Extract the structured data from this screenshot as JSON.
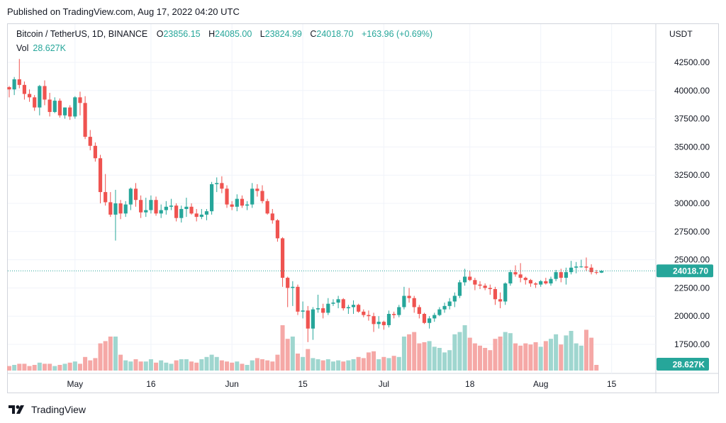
{
  "published": "Published on TradingView.com, Aug 17, 2022 04:20 UTC",
  "legend": {
    "symbol": "Bitcoin / TetherUS, 1D, BINANCE",
    "open_label": "O",
    "open": "23856.15",
    "high_label": "H",
    "high": "24085.00",
    "low_label": "L",
    "low": "23824.99",
    "close_label": "C",
    "close": "24018.70",
    "change": "+163.96 (+0.69%)"
  },
  "volume_legend": {
    "label": "Vol",
    "value": "28.627K"
  },
  "currency": "USDT",
  "footer_logo": "TradingView",
  "colors": {
    "up": "#26a69a",
    "down": "#ef5350",
    "vol_up": "#9fd6cf",
    "vol_down": "#f5a8a6",
    "grid": "#f0f3fa"
  },
  "chart_data": {
    "type": "candlestick",
    "symbol": "BTCUSDT",
    "interval": "1D",
    "start_date": "2022-04-18",
    "end_date": "2022-08-17",
    "ylim": [
      15500,
      43000
    ],
    "y_ticks": [
      "42500.00",
      "40000.00",
      "37500.00",
      "35000.00",
      "32500.00",
      "30000.00",
      "27500.00",
      "25000.00",
      "22500.00",
      "20000.00",
      "17500.00"
    ],
    "x_ticks": [
      "May",
      "16",
      "Jun",
      "15",
      "Jul",
      "18",
      "Aug",
      "15"
    ],
    "last_price": "24018.70",
    "last_volume": "28.627K",
    "ohlc": [
      [
        40300,
        40400,
        39400,
        40100
      ],
      [
        40100,
        41200,
        39600,
        41000
      ],
      [
        41000,
        42800,
        40200,
        40500
      ],
      [
        40500,
        40800,
        39200,
        39700
      ],
      [
        39700,
        40100,
        39000,
        39400
      ],
      [
        39400,
        39600,
        38200,
        38500
      ],
      [
        38500,
        40500,
        37800,
        40400
      ],
      [
        40400,
        40900,
        38700,
        39200
      ],
      [
        39200,
        39800,
        37700,
        38100
      ],
      [
        38100,
        39400,
        38000,
        39100
      ],
      [
        39100,
        39300,
        37600,
        37800
      ],
      [
        37800,
        38500,
        37500,
        38500
      ],
      [
        38500,
        38700,
        37400,
        37700
      ],
      [
        37700,
        39500,
        37500,
        39400
      ],
      [
        39400,
        39900,
        37800,
        38900
      ],
      [
        38900,
        39500,
        35700,
        35900
      ],
      [
        35900,
        36500,
        34700,
        35100
      ],
      [
        35100,
        35400,
        33700,
        34000
      ],
      [
        34000,
        34300,
        30000,
        31000
      ],
      [
        31000,
        32600,
        29800,
        30100
      ],
      [
        30100,
        31000,
        28800,
        29000
      ],
      [
        29000,
        31200,
        26700,
        30000
      ],
      [
        30000,
        30300,
        28600,
        29100
      ],
      [
        29100,
        30200,
        28800,
        29900
      ],
      [
        29900,
        31400,
        29400,
        31300
      ],
      [
        31300,
        31800,
        29700,
        30300
      ],
      [
        30300,
        30700,
        28700,
        29200
      ],
      [
        29200,
        30500,
        28800,
        29400
      ],
      [
        29400,
        30700,
        29100,
        30300
      ],
      [
        30300,
        30600,
        28900,
        29100
      ],
      [
        29100,
        29900,
        28700,
        29400
      ],
      [
        29400,
        30200,
        29000,
        29700
      ],
      [
        29700,
        30400,
        29400,
        29800
      ],
      [
        29800,
        30000,
        28400,
        28700
      ],
      [
        28700,
        29800,
        28300,
        29500
      ],
      [
        29500,
        30500,
        28800,
        29700
      ],
      [
        29700,
        30000,
        29000,
        29100
      ],
      [
        29100,
        29500,
        28400,
        28800
      ],
      [
        28800,
        29500,
        28600,
        29000
      ],
      [
        29000,
        29500,
        28500,
        29300
      ],
      [
        29300,
        31900,
        29000,
        31700
      ],
      [
        31700,
        32300,
        31000,
        31800
      ],
      [
        31800,
        32400,
        30900,
        31300
      ],
      [
        31300,
        31600,
        29600,
        29900
      ],
      [
        29900,
        30200,
        29400,
        29700
      ],
      [
        29700,
        30800,
        29300,
        30400
      ],
      [
        30400,
        30700,
        29600,
        29800
      ],
      [
        29800,
        30200,
        29400,
        29900
      ],
      [
        29900,
        31800,
        29600,
        31300
      ],
      [
        31300,
        31700,
        30600,
        31100
      ],
      [
        31100,
        31600,
        30000,
        30200
      ],
      [
        30200,
        30400,
        29000,
        29100
      ],
      [
        29100,
        29500,
        28200,
        28500
      ],
      [
        28500,
        28600,
        26600,
        26900
      ],
      [
        26900,
        27000,
        22600,
        23400
      ],
      [
        23400,
        23500,
        20800,
        22500
      ],
      [
        22500,
        23100,
        20900,
        22600
      ],
      [
        22600,
        22800,
        20100,
        20400
      ],
      [
        20400,
        21300,
        19800,
        20500
      ],
      [
        20500,
        20900,
        17700,
        18900
      ],
      [
        18900,
        20800,
        17900,
        20600
      ],
      [
        20600,
        21900,
        20300,
        20700
      ],
      [
        20700,
        21100,
        19800,
        20300
      ],
      [
        20300,
        21600,
        20100,
        21100
      ],
      [
        21100,
        21500,
        20900,
        21200
      ],
      [
        21200,
        21800,
        20700,
        21500
      ],
      [
        21500,
        21600,
        20500,
        20700
      ],
      [
        20700,
        21000,
        20200,
        20800
      ],
      [
        20800,
        21400,
        20200,
        21000
      ],
      [
        21000,
        21100,
        20300,
        20400
      ],
      [
        20400,
        20600,
        19900,
        20100
      ],
      [
        20100,
        20500,
        19600,
        20000
      ],
      [
        20000,
        20300,
        18600,
        19300
      ],
      [
        19300,
        20000,
        18900,
        19500
      ],
      [
        19500,
        19600,
        18800,
        19200
      ],
      [
        19200,
        20500,
        19000,
        20200
      ],
      [
        20200,
        20400,
        19800,
        20100
      ],
      [
        20100,
        21000,
        19900,
        20800
      ],
      [
        20800,
        22600,
        20600,
        21800
      ],
      [
        21800,
        22500,
        21200,
        21600
      ],
      [
        21600,
        21800,
        20300,
        20800
      ],
      [
        20800,
        21000,
        19800,
        20200
      ],
      [
        20200,
        20300,
        19300,
        19400
      ],
      [
        19400,
        20000,
        18900,
        19800
      ],
      [
        19800,
        20300,
        19500,
        20100
      ],
      [
        20100,
        20800,
        20000,
        20600
      ],
      [
        20600,
        21200,
        20300,
        20900
      ],
      [
        20900,
        21600,
        20600,
        21300
      ],
      [
        21300,
        22100,
        20800,
        21800
      ],
      [
        21800,
        23200,
        21600,
        23000
      ],
      [
        23000,
        24200,
        22700,
        23500
      ],
      [
        23500,
        24000,
        23100,
        23200
      ],
      [
        23200,
        23400,
        22300,
        22800
      ],
      [
        22800,
        23100,
        22400,
        22700
      ],
      [
        22700,
        22900,
        22300,
        22500
      ],
      [
        22500,
        22800,
        21900,
        22400
      ],
      [
        22400,
        22600,
        21000,
        21500
      ],
      [
        21500,
        22100,
        20700,
        21300
      ],
      [
        21300,
        23000,
        21000,
        22900
      ],
      [
        22900,
        24100,
        22700,
        23900
      ],
      [
        23900,
        24500,
        23500,
        23700
      ],
      [
        23700,
        24700,
        23000,
        23400
      ],
      [
        23400,
        23500,
        22800,
        23200
      ],
      [
        23200,
        23300,
        22600,
        22900
      ],
      [
        22900,
        23000,
        22500,
        22800
      ],
      [
        22800,
        23200,
        22600,
        23100
      ],
      [
        23100,
        23400,
        22800,
        22900
      ],
      [
        22900,
        23500,
        22700,
        23300
      ],
      [
        23300,
        24100,
        23100,
        23900
      ],
      [
        23900,
        24200,
        23000,
        23400
      ],
      [
        23400,
        24300,
        22800,
        23900
      ],
      [
        23900,
        24900,
        23700,
        24300
      ],
      [
        24300,
        24800,
        23800,
        24400
      ],
      [
        24400,
        25000,
        24300,
        24400
      ],
      [
        24400,
        25200,
        24000,
        24300
      ],
      [
        24300,
        24600,
        23700,
        23900
      ],
      [
        23900,
        24100,
        23700,
        23850
      ],
      [
        23856.15,
        24085.0,
        23824.99,
        24018.7
      ]
    ],
    "volume": [
      4,
      5,
      6,
      6,
      4,
      5,
      7,
      6,
      6,
      4,
      5,
      6,
      7,
      8,
      6,
      12,
      9,
      11,
      24,
      26,
      30,
      30,
      14,
      9,
      8,
      10,
      8,
      8,
      10,
      7,
      9,
      7,
      6,
      9,
      10,
      10,
      8,
      7,
      10,
      12,
      14,
      12,
      9,
      8,
      7,
      8,
      6,
      5,
      9,
      11,
      10,
      9,
      8,
      14,
      40,
      28,
      30,
      15,
      12,
      19,
      11,
      10,
      9,
      10,
      8,
      9,
      8,
      9,
      10,
      12,
      11,
      16,
      17,
      10,
      12,
      11,
      13,
      12,
      30,
      32,
      34,
      24,
      25,
      26,
      21,
      20,
      16,
      18,
      32,
      34,
      40,
      29,
      24,
      22,
      20,
      18,
      28,
      30,
      34,
      33,
      24,
      22,
      24,
      23,
      25,
      21,
      26,
      28,
      32,
      23,
      31,
      35,
      24,
      22,
      36,
      29,
      5
    ]
  }
}
